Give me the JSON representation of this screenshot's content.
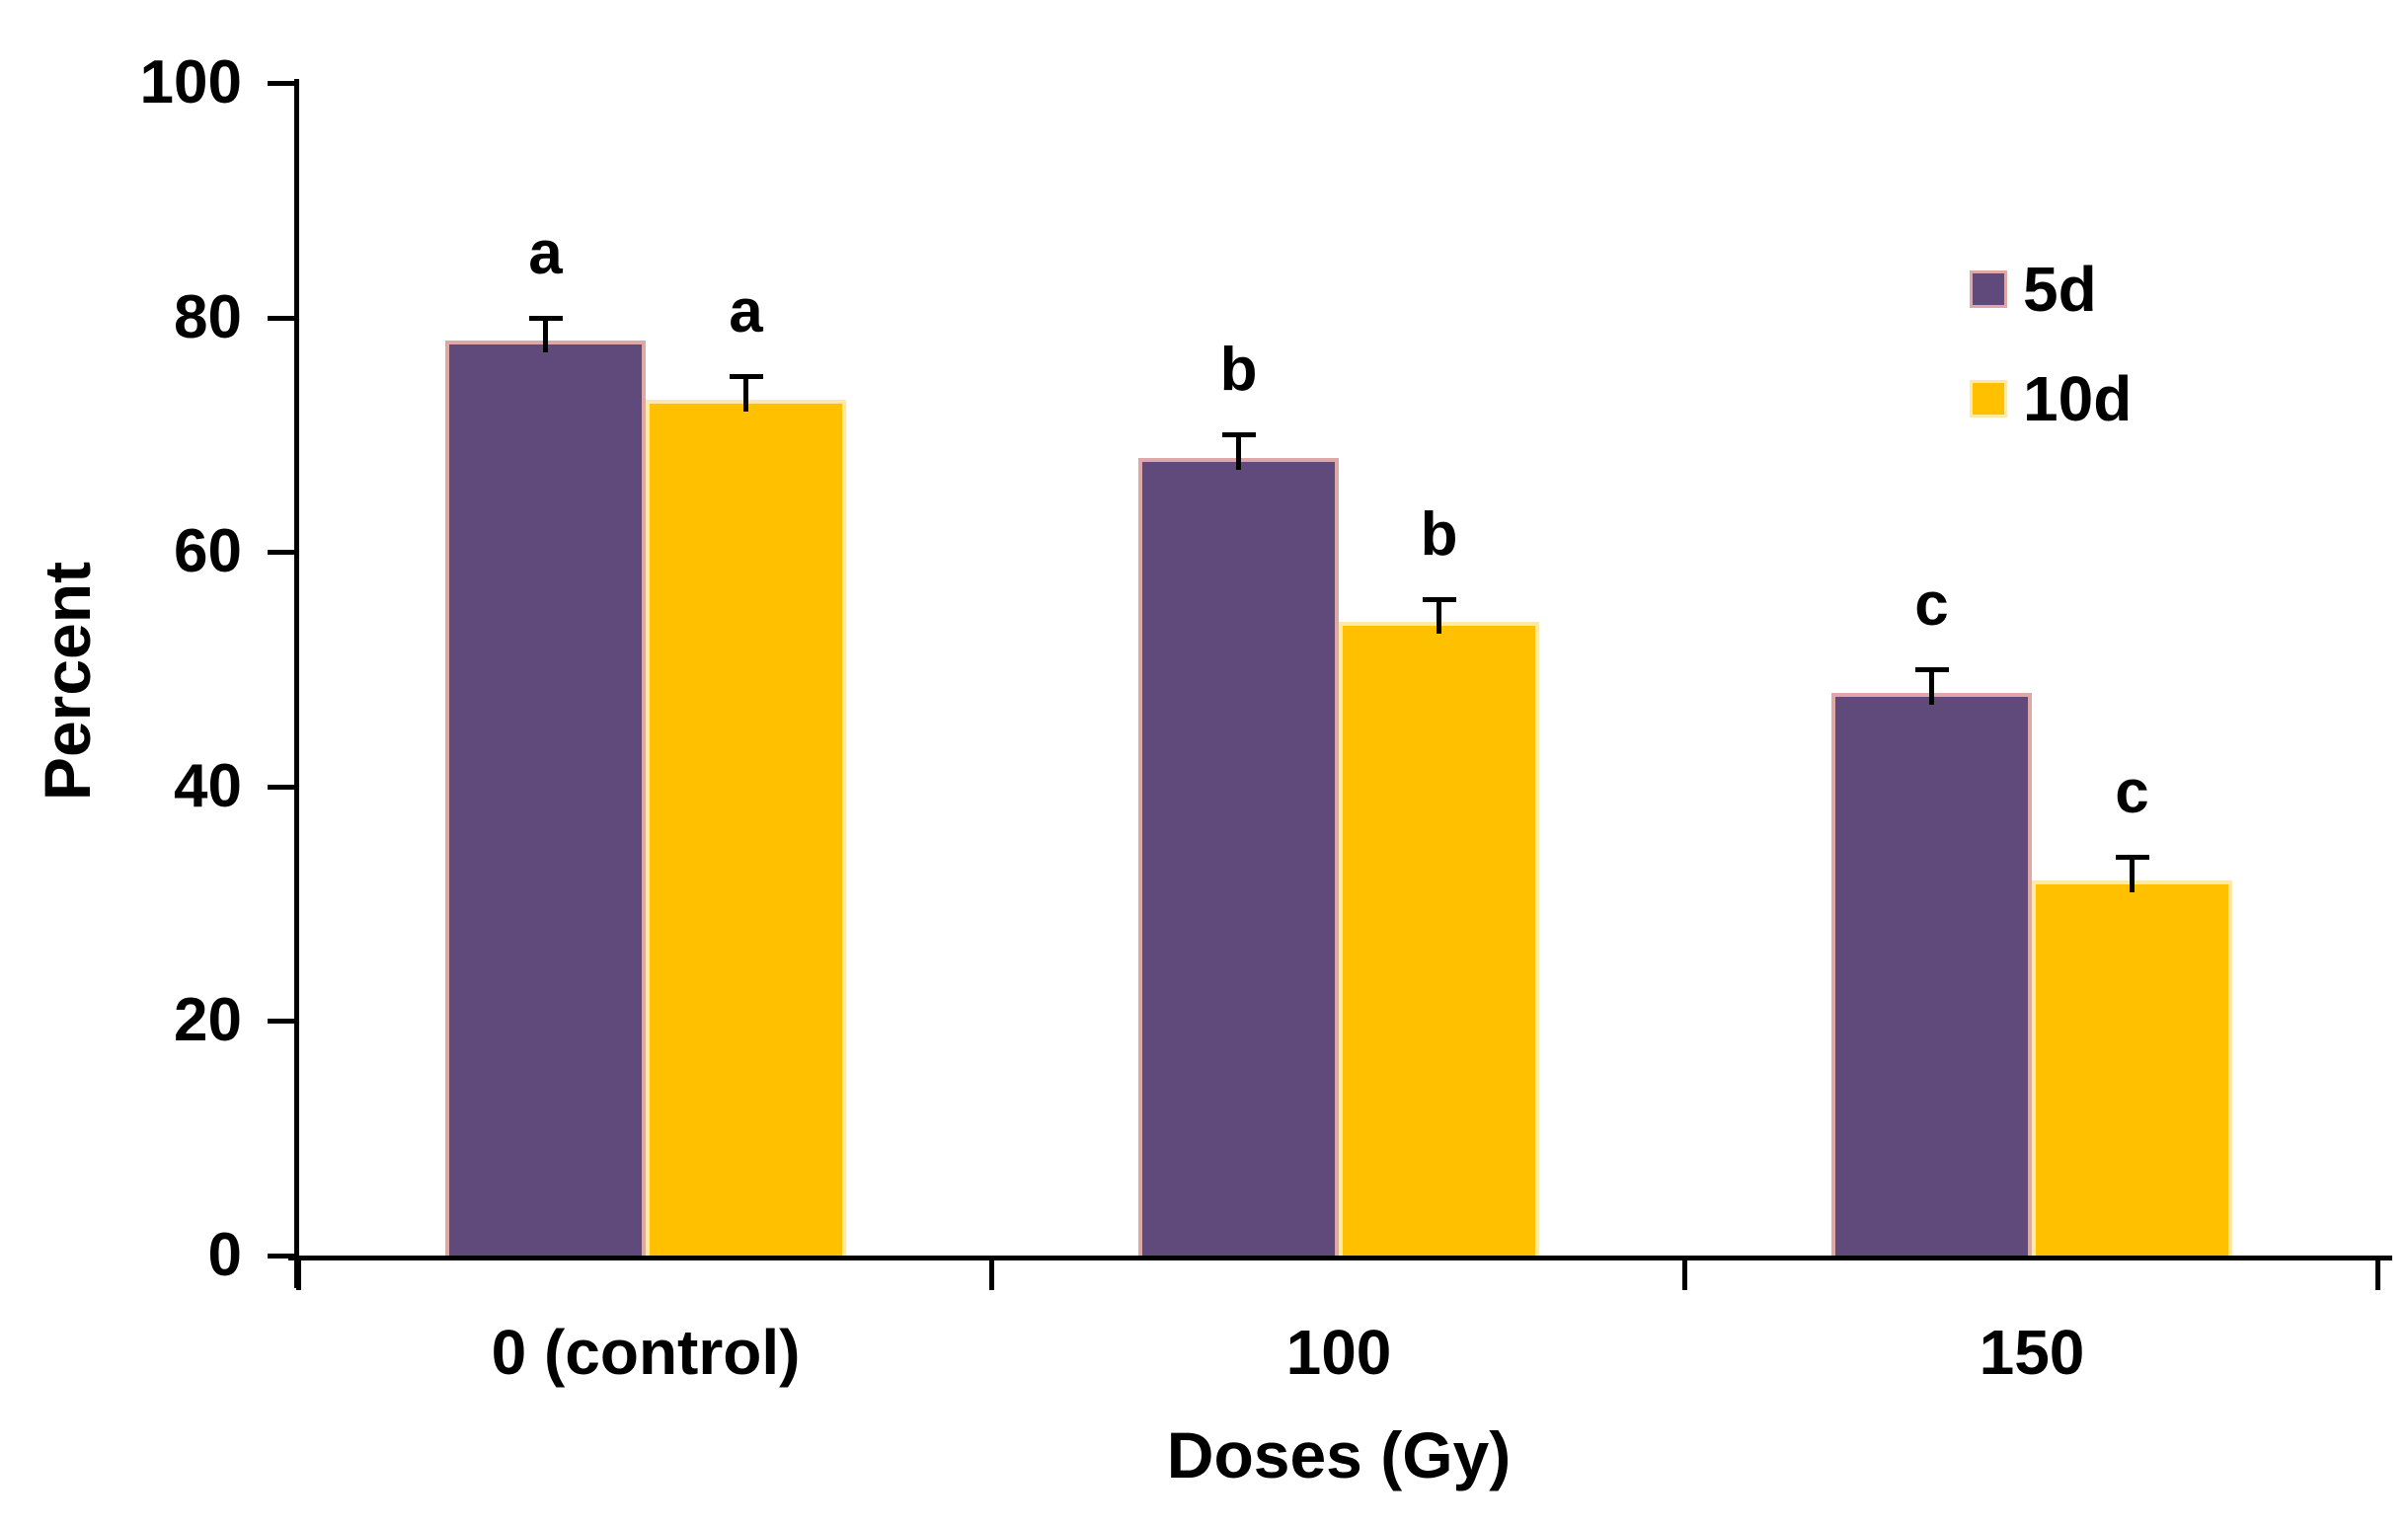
{
  "chart_data": {
    "type": "bar",
    "title": "",
    "xlabel": "Doses (Gy)",
    "ylabel": "Percent",
    "categories": [
      "0 (control)",
      "100",
      "150"
    ],
    "series": [
      {
        "name": "5d",
        "color": "#604a7b",
        "border_color": "#dfa8a6",
        "values": [
          78,
          68,
          48
        ],
        "error_bars": [
          2,
          2,
          2
        ],
        "significance_letters": [
          "a",
          "b",
          "c"
        ]
      },
      {
        "name": "10d",
        "color": "#ffc000",
        "border_color": "#ffe9a8",
        "values": [
          73,
          54,
          32
        ],
        "error_bars": [
          2,
          2,
          2
        ],
        "significance_letters": [
          "a",
          "b",
          "c"
        ]
      }
    ],
    "ylim": [
      0,
      100
    ],
    "yticks": [
      0,
      20,
      40,
      60,
      80,
      100
    ],
    "grid": false,
    "legend_position": "upper right",
    "axis_color": "#000000",
    "text_color": "#000000"
  }
}
